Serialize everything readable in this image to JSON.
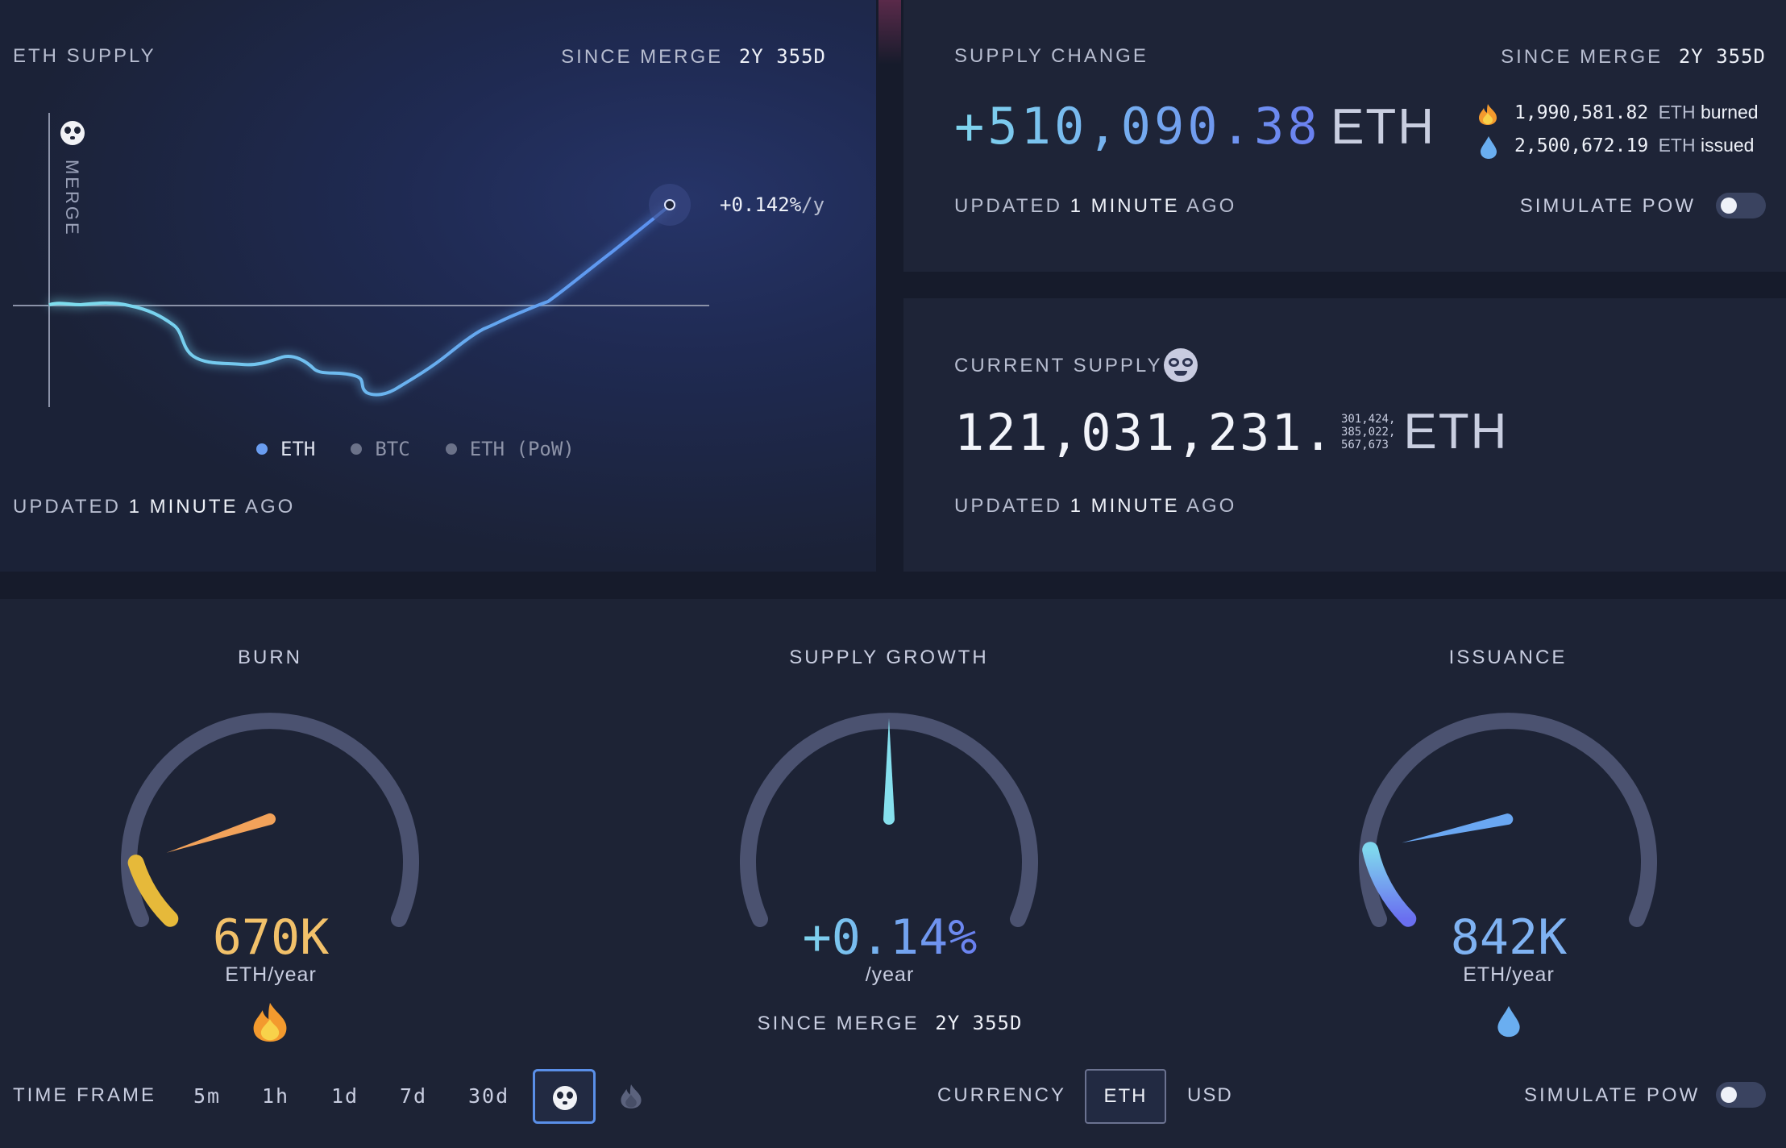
{
  "eth_supply_panel": {
    "title": "ETH SUPPLY",
    "since_label": "SINCE MERGE",
    "since_value": "2y 355d",
    "merge_label": "MERGE",
    "rate_value": "+0.142%",
    "rate_unit": "/y",
    "legend": [
      "ETH",
      "BTC",
      "ETH (PoW)"
    ],
    "updated_prefix": "UPDATED",
    "updated_value": "1 MINUTE",
    "updated_suffix": "AGO",
    "colors": {
      "eth_line": "#6aa7f2",
      "legend_eth": "#6a9df0",
      "legend_inactive": "#6b7289"
    }
  },
  "supply_change_panel": {
    "title": "SUPPLY CHANGE",
    "since_label": "SINCE MERGE",
    "since_value": "2y 355d",
    "value": "+510,090.38",
    "unit": "ETH",
    "burned_value": "1,990,581.82",
    "burned_unit": "ETH",
    "burned_label": "burned",
    "issued_value": "2,500,672.19",
    "issued_unit": "ETH",
    "issued_label": "issued",
    "updated_prefix": "UPDATED",
    "updated_value": "1 MINUTE",
    "updated_suffix": "AGO",
    "simulate_label": "SIMULATE PoW",
    "simulate_on": false
  },
  "current_supply_panel": {
    "title": "CURRENT SUPPLY",
    "integer": "121,031,231.",
    "decimals": [
      "301,424,",
      "385,022,",
      "567,673"
    ],
    "unit": "ETH",
    "updated_prefix": "UPDATED",
    "updated_value": "1 MINUTE",
    "updated_suffix": "AGO"
  },
  "gauges": {
    "burn": {
      "title": "BURN",
      "value": "670K",
      "unit": "ETH/year",
      "level": 0.1,
      "color": "#f2b05a"
    },
    "supply_growth": {
      "title": "SUPPLY GROWTH",
      "value": "+0.14%",
      "unit": "/year",
      "since_label": "SINCE MERGE",
      "since_value": "2y 355d",
      "level": 0.5,
      "color": "#7fd6ee"
    },
    "issuance": {
      "title": "ISSUANCE",
      "value": "842K",
      "unit": "ETH/year",
      "level": 0.12,
      "color": "#6aa7f2"
    }
  },
  "controls": {
    "time_frame_label": "TIME FRAME",
    "time_frames": [
      "5m",
      "1h",
      "1d",
      "7d",
      "30d"
    ],
    "selected_time_frame": "since-merge",
    "currency_label": "CURRENCY",
    "currency_options": [
      "ETH",
      "USD"
    ],
    "selected_currency": "ETH",
    "simulate_label": "SIMULATE PoW",
    "simulate_on": false
  }
}
